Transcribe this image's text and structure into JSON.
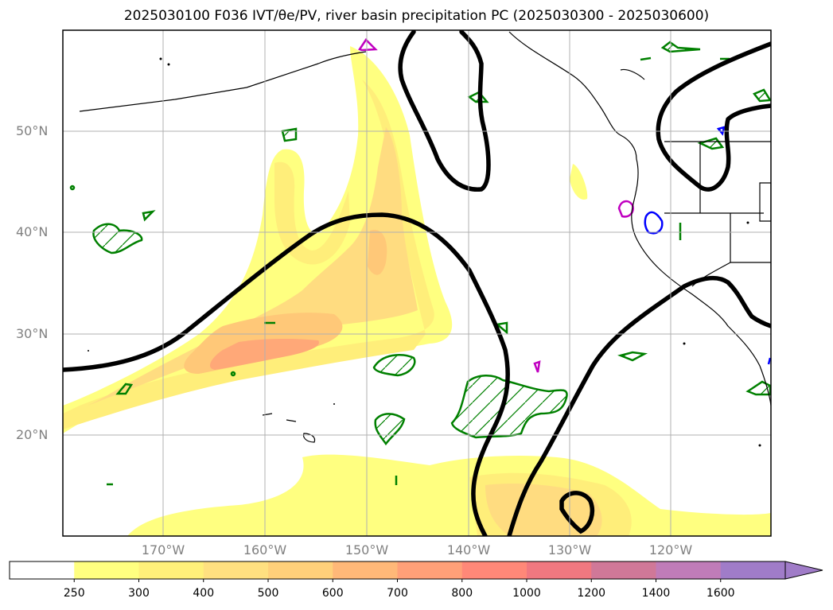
{
  "title": "2025030100 F036 IVT/θe/PV, river basin precipitation PC (2025030300 - 2025030600)",
  "latitude_labels": [
    "50°N",
    "40°N",
    "30°N",
    "20°N"
  ],
  "longitude_labels": [
    "170°W",
    "160°W",
    "150°W",
    "140°W",
    "130°W",
    "120°W"
  ],
  "colorbar": {
    "levels": [
      "250",
      "300",
      "400",
      "500",
      "600",
      "700",
      "800",
      "1000",
      "1200",
      "1400",
      "1600"
    ],
    "colors": [
      "#ffffff",
      "#ffff80",
      "#fff07a",
      "#ffe080",
      "#ffd07a",
      "#ffb878",
      "#ffa078",
      "#ff8878",
      "#f07880",
      "#d07898",
      "#c07cb8",
      "#a07cc8"
    ],
    "extend": "max"
  },
  "contour_colors": {
    "theta_e": "#000000",
    "pv_green": "#008000",
    "magenta": "#c000c0",
    "blue": "#0000ff",
    "coastline": "#000000"
  }
}
